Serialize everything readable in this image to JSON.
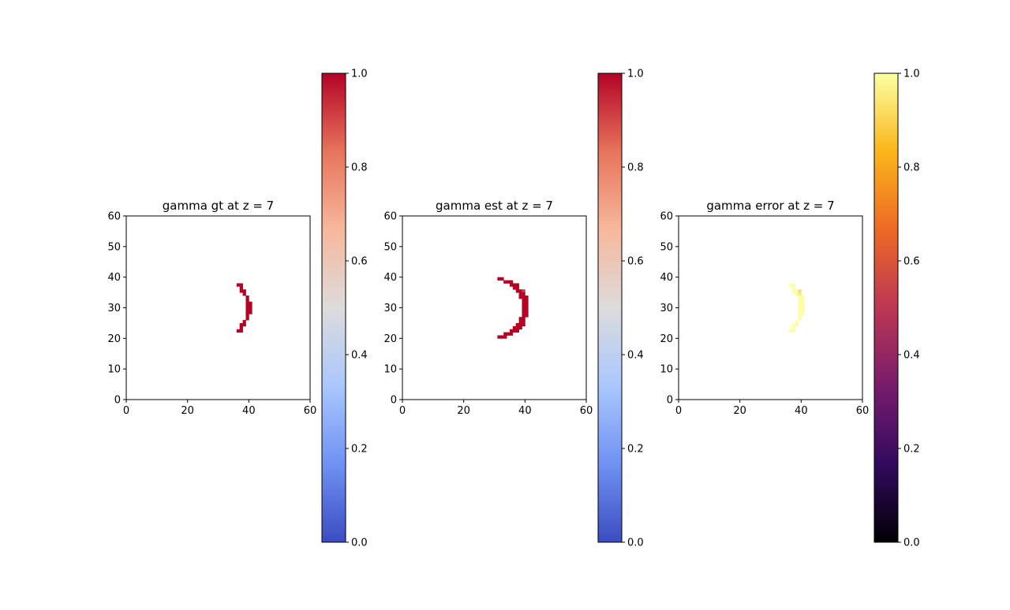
{
  "chart_data": [
    {
      "type": "heatmap",
      "title": "gamma gt at z = 7",
      "xlim": [
        0,
        60
      ],
      "ylim": [
        0,
        60
      ],
      "xticks": [
        "0",
        "20",
        "40",
        "60"
      ],
      "yticks": [
        "0",
        "10",
        "20",
        "30",
        "40",
        "50",
        "60"
      ],
      "colormap": "coolwarm",
      "colorbar": {
        "range": [
          0,
          1
        ],
        "ticks": [
          "0.0",
          "0.2",
          "0.4",
          "0.6",
          "0.8",
          "1.0"
        ],
        "colors": [
          "#3b4cc0",
          "#6f92f3",
          "#aac7fd",
          "#dddcdc",
          "#f7b89c",
          "#e7745b",
          "#b40426"
        ]
      },
      "cells": [
        {
          "x": [
            36,
            38
          ],
          "y": 37,
          "value": 1.0
        },
        {
          "x": [
            37,
            38
          ],
          "y": 36,
          "value": 1.0
        },
        {
          "x": [
            37,
            39
          ],
          "y": 35,
          "value": 1.0
        },
        {
          "x": [
            38,
            39
          ],
          "y": 34,
          "value": 1.0
        },
        {
          "x": [
            39,
            40
          ],
          "y": 33,
          "value": 1.0
        },
        {
          "x": [
            39,
            40
          ],
          "y": 32,
          "value": 1.0
        },
        {
          "x": [
            39,
            41
          ],
          "y": 31,
          "value": 1.0
        },
        {
          "x": [
            39,
            41
          ],
          "y": 30,
          "value": 1.0
        },
        {
          "x": [
            39,
            41
          ],
          "y": 29,
          "value": 1.0
        },
        {
          "x": [
            39,
            41
          ],
          "y": 28,
          "value": 1.0
        },
        {
          "x": [
            39,
            40
          ],
          "y": 27,
          "value": 1.0
        },
        {
          "x": [
            39,
            40
          ],
          "y": 26,
          "value": 1.0
        },
        {
          "x": [
            38,
            39
          ],
          "y": 25,
          "value": 1.0
        },
        {
          "x": [
            37,
            39
          ],
          "y": 24,
          "value": 1.0
        },
        {
          "x": [
            37,
            38
          ],
          "y": 23,
          "value": 1.0
        },
        {
          "x": [
            36,
            38
          ],
          "y": 22,
          "value": 1.0
        }
      ]
    },
    {
      "type": "heatmap",
      "title": "gamma est at z = 7",
      "xlim": [
        0,
        60
      ],
      "ylim": [
        0,
        60
      ],
      "xticks": [
        "0",
        "20",
        "40",
        "60"
      ],
      "yticks": [
        "0",
        "10",
        "20",
        "30",
        "40",
        "50",
        "60"
      ],
      "colormap": "coolwarm",
      "colorbar": {
        "range": [
          0,
          1
        ],
        "ticks": [
          "0.0",
          "0.2",
          "0.4",
          "0.6",
          "0.8",
          "1.0"
        ],
        "colors": [
          "#3b4cc0",
          "#6f92f3",
          "#aac7fd",
          "#dddcdc",
          "#f7b89c",
          "#e7745b",
          "#b40426"
        ]
      },
      "cells": [
        {
          "x": [
            31,
            33
          ],
          "y": 39,
          "value": 1.0
        },
        {
          "x": [
            33,
            36
          ],
          "y": 38,
          "value": 1.0
        },
        {
          "x": [
            35,
            38
          ],
          "y": 37,
          "value": 1.0
        },
        {
          "x": [
            36,
            38
          ],
          "y": 36,
          "value": 1.0
        },
        {
          "x": [
            37,
            39
          ],
          "y": 35,
          "value": 1.0
        },
        {
          "x": [
            39,
            40
          ],
          "y": 35,
          "value": 0.92
        },
        {
          "x": [
            38,
            40
          ],
          "y": 34,
          "value": 1.0
        },
        {
          "x": [
            38,
            41
          ],
          "y": 33,
          "value": 1.0
        },
        {
          "x": [
            39,
            41
          ],
          "y": 32,
          "value": 1.0
        },
        {
          "x": [
            39,
            41
          ],
          "y": 31,
          "value": 1.0
        },
        {
          "x": [
            39,
            41
          ],
          "y": 30,
          "value": 1.0
        },
        {
          "x": [
            39,
            41
          ],
          "y": 29,
          "value": 1.0
        },
        {
          "x": [
            39,
            41
          ],
          "y": 28,
          "value": 1.0
        },
        {
          "x": [
            39,
            41
          ],
          "y": 27,
          "value": 1.0
        },
        {
          "x": [
            38,
            40
          ],
          "y": 26,
          "value": 1.0
        },
        {
          "x": [
            38,
            40
          ],
          "y": 25,
          "value": 1.0
        },
        {
          "x": [
            37,
            40
          ],
          "y": 24,
          "value": 1.0
        },
        {
          "x": [
            36,
            39
          ],
          "y": 23,
          "value": 1.0
        },
        {
          "x": [
            35,
            38
          ],
          "y": 22,
          "value": 1.0
        },
        {
          "x": [
            33,
            36
          ],
          "y": 21,
          "value": 1.0
        },
        {
          "x": [
            31,
            34
          ],
          "y": 20,
          "value": 1.0
        }
      ]
    },
    {
      "type": "heatmap",
      "title": "gamma error at z = 7",
      "xlim": [
        0,
        60
      ],
      "ylim": [
        0,
        60
      ],
      "xticks": [
        "0",
        "20",
        "40",
        "60"
      ],
      "yticks": [
        "0",
        "10",
        "20",
        "30",
        "40",
        "50",
        "60"
      ],
      "colormap": "inferno",
      "colorbar": {
        "range": [
          0,
          1
        ],
        "ticks": [
          "0.0",
          "0.2",
          "0.4",
          "0.6",
          "0.8",
          "1.0"
        ],
        "colors": [
          "#000004",
          "#320a5e",
          "#781c6d",
          "#bc3754",
          "#ed6925",
          "#fbb61a",
          "#fcffa4"
        ]
      },
      "cells": [
        {
          "x": [
            36,
            38
          ],
          "y": 37,
          "value": 1.0
        },
        {
          "x": [
            37,
            38
          ],
          "y": 36,
          "value": 1.0
        },
        {
          "x": [
            37,
            39
          ],
          "y": 35,
          "value": 1.0
        },
        {
          "x": [
            39,
            40
          ],
          "y": 35,
          "value": 0.93
        },
        {
          "x": [
            38,
            39
          ],
          "y": 34,
          "value": 1.0
        },
        {
          "x": [
            39,
            40
          ],
          "y": 34,
          "value": 0.95
        },
        {
          "x": [
            39,
            41
          ],
          "y": 33,
          "value": 1.0
        },
        {
          "x": [
            39,
            41
          ],
          "y": 32,
          "value": 1.0
        },
        {
          "x": [
            39,
            41
          ],
          "y": 31,
          "value": 1.0
        },
        {
          "x": [
            39,
            41
          ],
          "y": 30,
          "value": 1.0
        },
        {
          "x": [
            39,
            41
          ],
          "y": 29,
          "value": 1.0
        },
        {
          "x": [
            39,
            41
          ],
          "y": 28,
          "value": 1.0
        },
        {
          "x": [
            39,
            40
          ],
          "y": 27,
          "value": 1.0
        },
        {
          "x": [
            39,
            40
          ],
          "y": 26,
          "value": 1.0
        },
        {
          "x": [
            38,
            39
          ],
          "y": 25,
          "value": 1.0
        },
        {
          "x": [
            37,
            39
          ],
          "y": 24,
          "value": 1.0
        },
        {
          "x": [
            37,
            38
          ],
          "y": 23,
          "value": 1.0
        },
        {
          "x": [
            36,
            38
          ],
          "y": 22,
          "value": 1.0
        }
      ]
    }
  ]
}
